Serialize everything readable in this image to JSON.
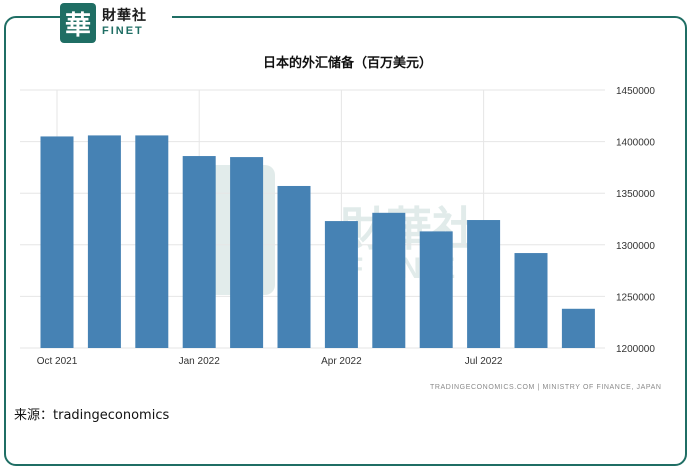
{
  "brand": {
    "logo_glyph": "華",
    "name_cn": "財華社",
    "name_en": "FINET",
    "color": "#1f6e64"
  },
  "source_label": "来源：tradingeconomics",
  "attribution": "TRADINGECONOMICS.COM | MINISTRY OF FINANCE, JAPAN",
  "watermark": {
    "cn": "財華社",
    "en": "FINET"
  },
  "chart_data": {
    "type": "bar",
    "title": "日本的外汇储备（百万美元）",
    "xlabel": "",
    "ylabel": "",
    "categories": [
      "2021-10",
      "2021-11",
      "2021-12",
      "2022-01",
      "2022-02",
      "2022-03",
      "2022-04",
      "2022-05",
      "2022-06",
      "2022-07",
      "2022-08",
      "2022-09"
    ],
    "values": [
      1405000,
      1406000,
      1406000,
      1386000,
      1385000,
      1357000,
      1323000,
      1331000,
      1313000,
      1324000,
      1292000,
      1238000
    ],
    "ylim": [
      1200000,
      1450000
    ],
    "yticks": [
      1200000,
      1250000,
      1300000,
      1350000,
      1400000,
      1450000
    ],
    "ytick_labels": [
      "1200000",
      "1250000",
      "1300000",
      "1350000",
      "1400000",
      "1450000"
    ],
    "xtick_labels": [
      {
        "index": 0,
        "label": "Oct 2021"
      },
      {
        "index": 3,
        "label": "Jan 2022"
      },
      {
        "index": 6,
        "label": "Apr 2022"
      },
      {
        "index": 9,
        "label": "Jul 2022"
      }
    ],
    "bar_color": "#4682b4",
    "grid": true,
    "legend": "none"
  }
}
